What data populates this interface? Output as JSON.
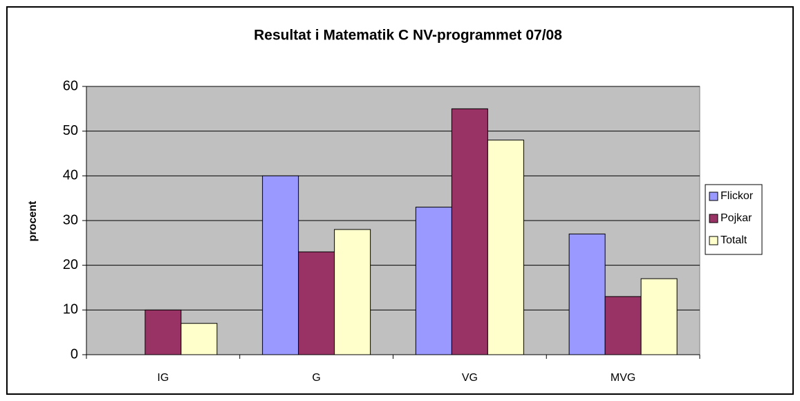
{
  "chart_data": {
    "type": "bar",
    "title": "Resultat i Matematik C NV-programmet 07/08",
    "y_label": "procent",
    "categories": [
      "IG",
      "G",
      "VG",
      "MVG"
    ],
    "series": [
      {
        "name": "Flickor",
        "color": "#9999ff",
        "values": [
          0,
          40,
          33,
          27
        ]
      },
      {
        "name": "Pojkar",
        "color": "#993366",
        "values": [
          10,
          23,
          55,
          13
        ]
      },
      {
        "name": "Totalt",
        "color": "#ffffcc",
        "values": [
          7,
          28,
          48,
          17
        ]
      }
    ],
    "ylim": [
      0,
      60
    ],
    "yticks": [
      0,
      10,
      20,
      30,
      40,
      50,
      60
    ],
    "grid": true,
    "legend": "right"
  }
}
